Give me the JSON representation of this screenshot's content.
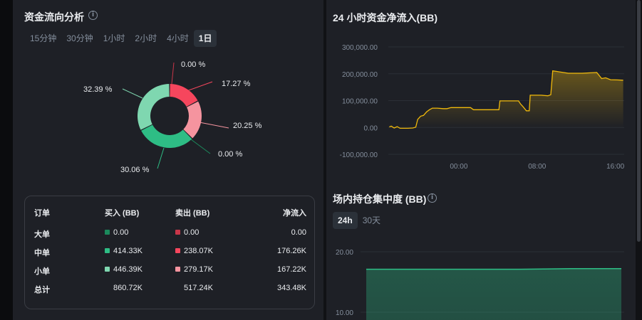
{
  "flow_analysis": {
    "title": "资金流向分析",
    "tabs": [
      {
        "label": "15分钟",
        "active": false
      },
      {
        "label": "30分钟",
        "active": false
      },
      {
        "label": "1小时",
        "active": false
      },
      {
        "label": "2小时",
        "active": false
      },
      {
        "label": "4小时",
        "active": false
      },
      {
        "label": "1日",
        "active": true
      }
    ],
    "donut": {
      "slices": [
        {
          "label": "0.00 %",
          "value": 0.0,
          "color": "#c93649"
        },
        {
          "label": "17.27 %",
          "value": 17.27,
          "color": "#f6465d"
        },
        {
          "label": "20.25 %",
          "value": 20.25,
          "color": "#f5949f"
        },
        {
          "label": "0.00 %",
          "value": 0.0,
          "color": "#1b8a5c"
        },
        {
          "label": "30.06 %",
          "value": 30.06,
          "color": "#2ebd85"
        },
        {
          "label": "32.39 %",
          "value": 32.39,
          "color": "#7fd7b0"
        }
      ]
    },
    "table": {
      "headers": [
        "订单",
        "买入 (BB)",
        "卖出 (BB)",
        "净流入"
      ],
      "rows": [
        {
          "label": "大单",
          "buy": "0.00",
          "sell": "0.00",
          "net": "0.00",
          "buy_color": "#1b8a5c",
          "sell_color": "#c93649"
        },
        {
          "label": "中单",
          "buy": "414.33K",
          "sell": "238.07K",
          "net": "176.26K",
          "buy_color": "#2ebd85",
          "sell_color": "#f6465d"
        },
        {
          "label": "小单",
          "buy": "446.39K",
          "sell": "279.17K",
          "net": "167.22K",
          "buy_color": "#7fd7b0",
          "sell_color": "#f5949f"
        },
        {
          "label": "总计",
          "buy": "860.72K",
          "sell": "517.24K",
          "net": "343.48K"
        }
      ]
    }
  },
  "chart_data": [
    {
      "type": "line",
      "title": "24 小时资金净流入(BB)",
      "y_ticks": [
        "300,000.00",
        "200,000.00",
        "100,000.00",
        "0.00",
        "-100,000.00"
      ],
      "ylim": [
        -100000,
        300000
      ],
      "x_ticks": [
        "00:00",
        "08:00",
        "16:00"
      ],
      "x_tick_hours": [
        0,
        8,
        16
      ],
      "xlim": [
        -7.2,
        16.9
      ],
      "color": "#f0b90b",
      "area": true,
      "points": [
        {
          "x": -7.1,
          "y": 2000
        },
        {
          "x": -6.9,
          "y": 5000
        },
        {
          "x": -6.6,
          "y": -2000
        },
        {
          "x": -6.3,
          "y": 3000
        },
        {
          "x": -6.0,
          "y": -3000
        },
        {
          "x": -5.2,
          "y": -3000
        },
        {
          "x": -4.7,
          "y": -2000
        },
        {
          "x": -4.4,
          "y": 1000
        },
        {
          "x": -4.2,
          "y": 30000
        },
        {
          "x": -3.9,
          "y": 42000
        },
        {
          "x": -3.6,
          "y": 45000
        },
        {
          "x": -3.3,
          "y": 58000
        },
        {
          "x": -3.0,
          "y": 66000
        },
        {
          "x": -2.7,
          "y": 72000
        },
        {
          "x": -2.2,
          "y": 72000
        },
        {
          "x": -1.6,
          "y": 70000
        },
        {
          "x": -1.2,
          "y": 70000
        },
        {
          "x": -0.8,
          "y": 74000
        },
        {
          "x": 0.5,
          "y": 74000
        },
        {
          "x": 1.2,
          "y": 74000
        },
        {
          "x": 1.5,
          "y": 66000
        },
        {
          "x": 2.9,
          "y": 66000
        },
        {
          "x": 4.1,
          "y": 66000
        },
        {
          "x": 4.2,
          "y": 99000
        },
        {
          "x": 6.1,
          "y": 99000
        },
        {
          "x": 6.3,
          "y": 88000
        },
        {
          "x": 6.6,
          "y": 76000
        },
        {
          "x": 6.9,
          "y": 62000
        },
        {
          "x": 7.2,
          "y": 62000
        },
        {
          "x": 7.3,
          "y": 120000
        },
        {
          "x": 8.4,
          "y": 120000
        },
        {
          "x": 9.1,
          "y": 118000
        },
        {
          "x": 9.4,
          "y": 122000
        },
        {
          "x": 9.6,
          "y": 211000
        },
        {
          "x": 10.3,
          "y": 207000
        },
        {
          "x": 11.2,
          "y": 202000
        },
        {
          "x": 12.6,
          "y": 202000
        },
        {
          "x": 14.1,
          "y": 205000
        },
        {
          "x": 14.6,
          "y": 182000
        },
        {
          "x": 15.0,
          "y": 185000
        },
        {
          "x": 15.5,
          "y": 178000
        },
        {
          "x": 16.2,
          "y": 177000
        },
        {
          "x": 16.8,
          "y": 176000
        }
      ]
    },
    {
      "type": "area",
      "title": "场内持仓集中度 (BB)",
      "tabs": [
        {
          "label": "24h",
          "active": true
        },
        {
          "label": "30天",
          "active": false
        }
      ],
      "y_ticks": [
        "20.00",
        "10.00"
      ],
      "ylim": [
        10,
        20
      ],
      "color": "#2ebd85",
      "points": [
        {
          "x": 0,
          "y": 17.1
        },
        {
          "x": 0.2,
          "y": 17.1
        },
        {
          "x": 0.4,
          "y": 17.1
        },
        {
          "x": 0.6,
          "y": 17.1
        },
        {
          "x": 0.7,
          "y": 17.15
        },
        {
          "x": 0.8,
          "y": 17.2
        },
        {
          "x": 1.0,
          "y": 17.2
        }
      ]
    }
  ]
}
